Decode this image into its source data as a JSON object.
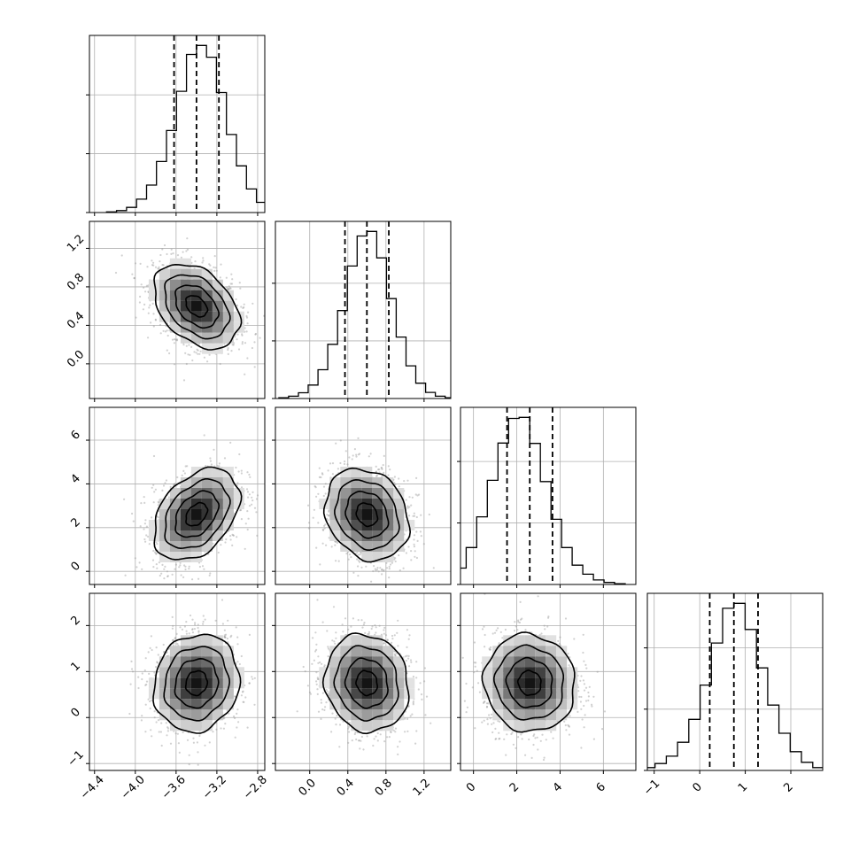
{
  "chart_data": {
    "type": "corner",
    "grid": true,
    "parameters": [
      {
        "range": [
          -4.45,
          -2.73
        ],
        "mean": -3.4,
        "sd": 0.21,
        "q16": -3.62,
        "q50": -3.4,
        "q84": -3.18,
        "ticks": [
          -4.4,
          -4.0,
          -3.6,
          -3.2,
          -2.8
        ],
        "tick_labels": [
          "−4.4",
          "−4.0",
          "−3.6",
          "−3.2",
          "−2.8"
        ],
        "counts": [
          3,
          10,
          26,
          68,
          140,
          260,
          418,
          618,
          806,
          852,
          792,
          612,
          398,
          238,
          120,
          52,
          20,
          6
        ]
      },
      {
        "range": [
          -0.36,
          1.48
        ],
        "mean": 0.6,
        "sd": 0.22,
        "q16": 0.37,
        "q50": 0.6,
        "q84": 0.83,
        "ticks": [
          0.0,
          0.4,
          0.8,
          1.2
        ],
        "tick_labels": [
          "0.0",
          "0.4",
          "0.8",
          "1.2"
        ],
        "counts": [
          4,
          12,
          30,
          70,
          150,
          282,
          458,
          690,
          846,
          870,
          732,
          520,
          320,
          170,
          80,
          32,
          12,
          4
        ]
      },
      {
        "range": [
          -0.6,
          7.5
        ],
        "mean": 2.6,
        "sd": 1.05,
        "q16": 1.55,
        "q50": 2.6,
        "q84": 3.65,
        "ticks": [
          0,
          2,
          4,
          6
        ],
        "tick_labels": [
          "0",
          "2",
          "4",
          "6"
        ],
        "counts": [
          8,
          30,
          80,
          180,
          330,
          508,
          690,
          810,
          815,
          688,
          502,
          318,
          180,
          94,
          50,
          22,
          10,
          4
        ]
      },
      {
        "range": [
          -1.15,
          2.7
        ],
        "mean": 0.75,
        "sd": 0.53,
        "q16": 0.22,
        "q50": 0.75,
        "q84": 1.28,
        "ticks": [
          -1,
          0,
          1,
          2
        ],
        "tick_labels": [
          "−1",
          "0",
          "1",
          "2"
        ],
        "counts": [
          6,
          14,
          34,
          70,
          138,
          250,
          418,
          624,
          794,
          818,
          690,
          502,
          320,
          182,
          92,
          40,
          14,
          4
        ]
      }
    ],
    "correlations": {
      "0-1": -0.38,
      "0-2": 0.38,
      "0-3": 0.1,
      "1-2": -0.2,
      "1-3": -0.1,
      "2-3": -0.05
    },
    "contour_levels_sigma": [
      0.5,
      1.0,
      1.5,
      2.0
    ],
    "samples_per_panel": 1400
  }
}
